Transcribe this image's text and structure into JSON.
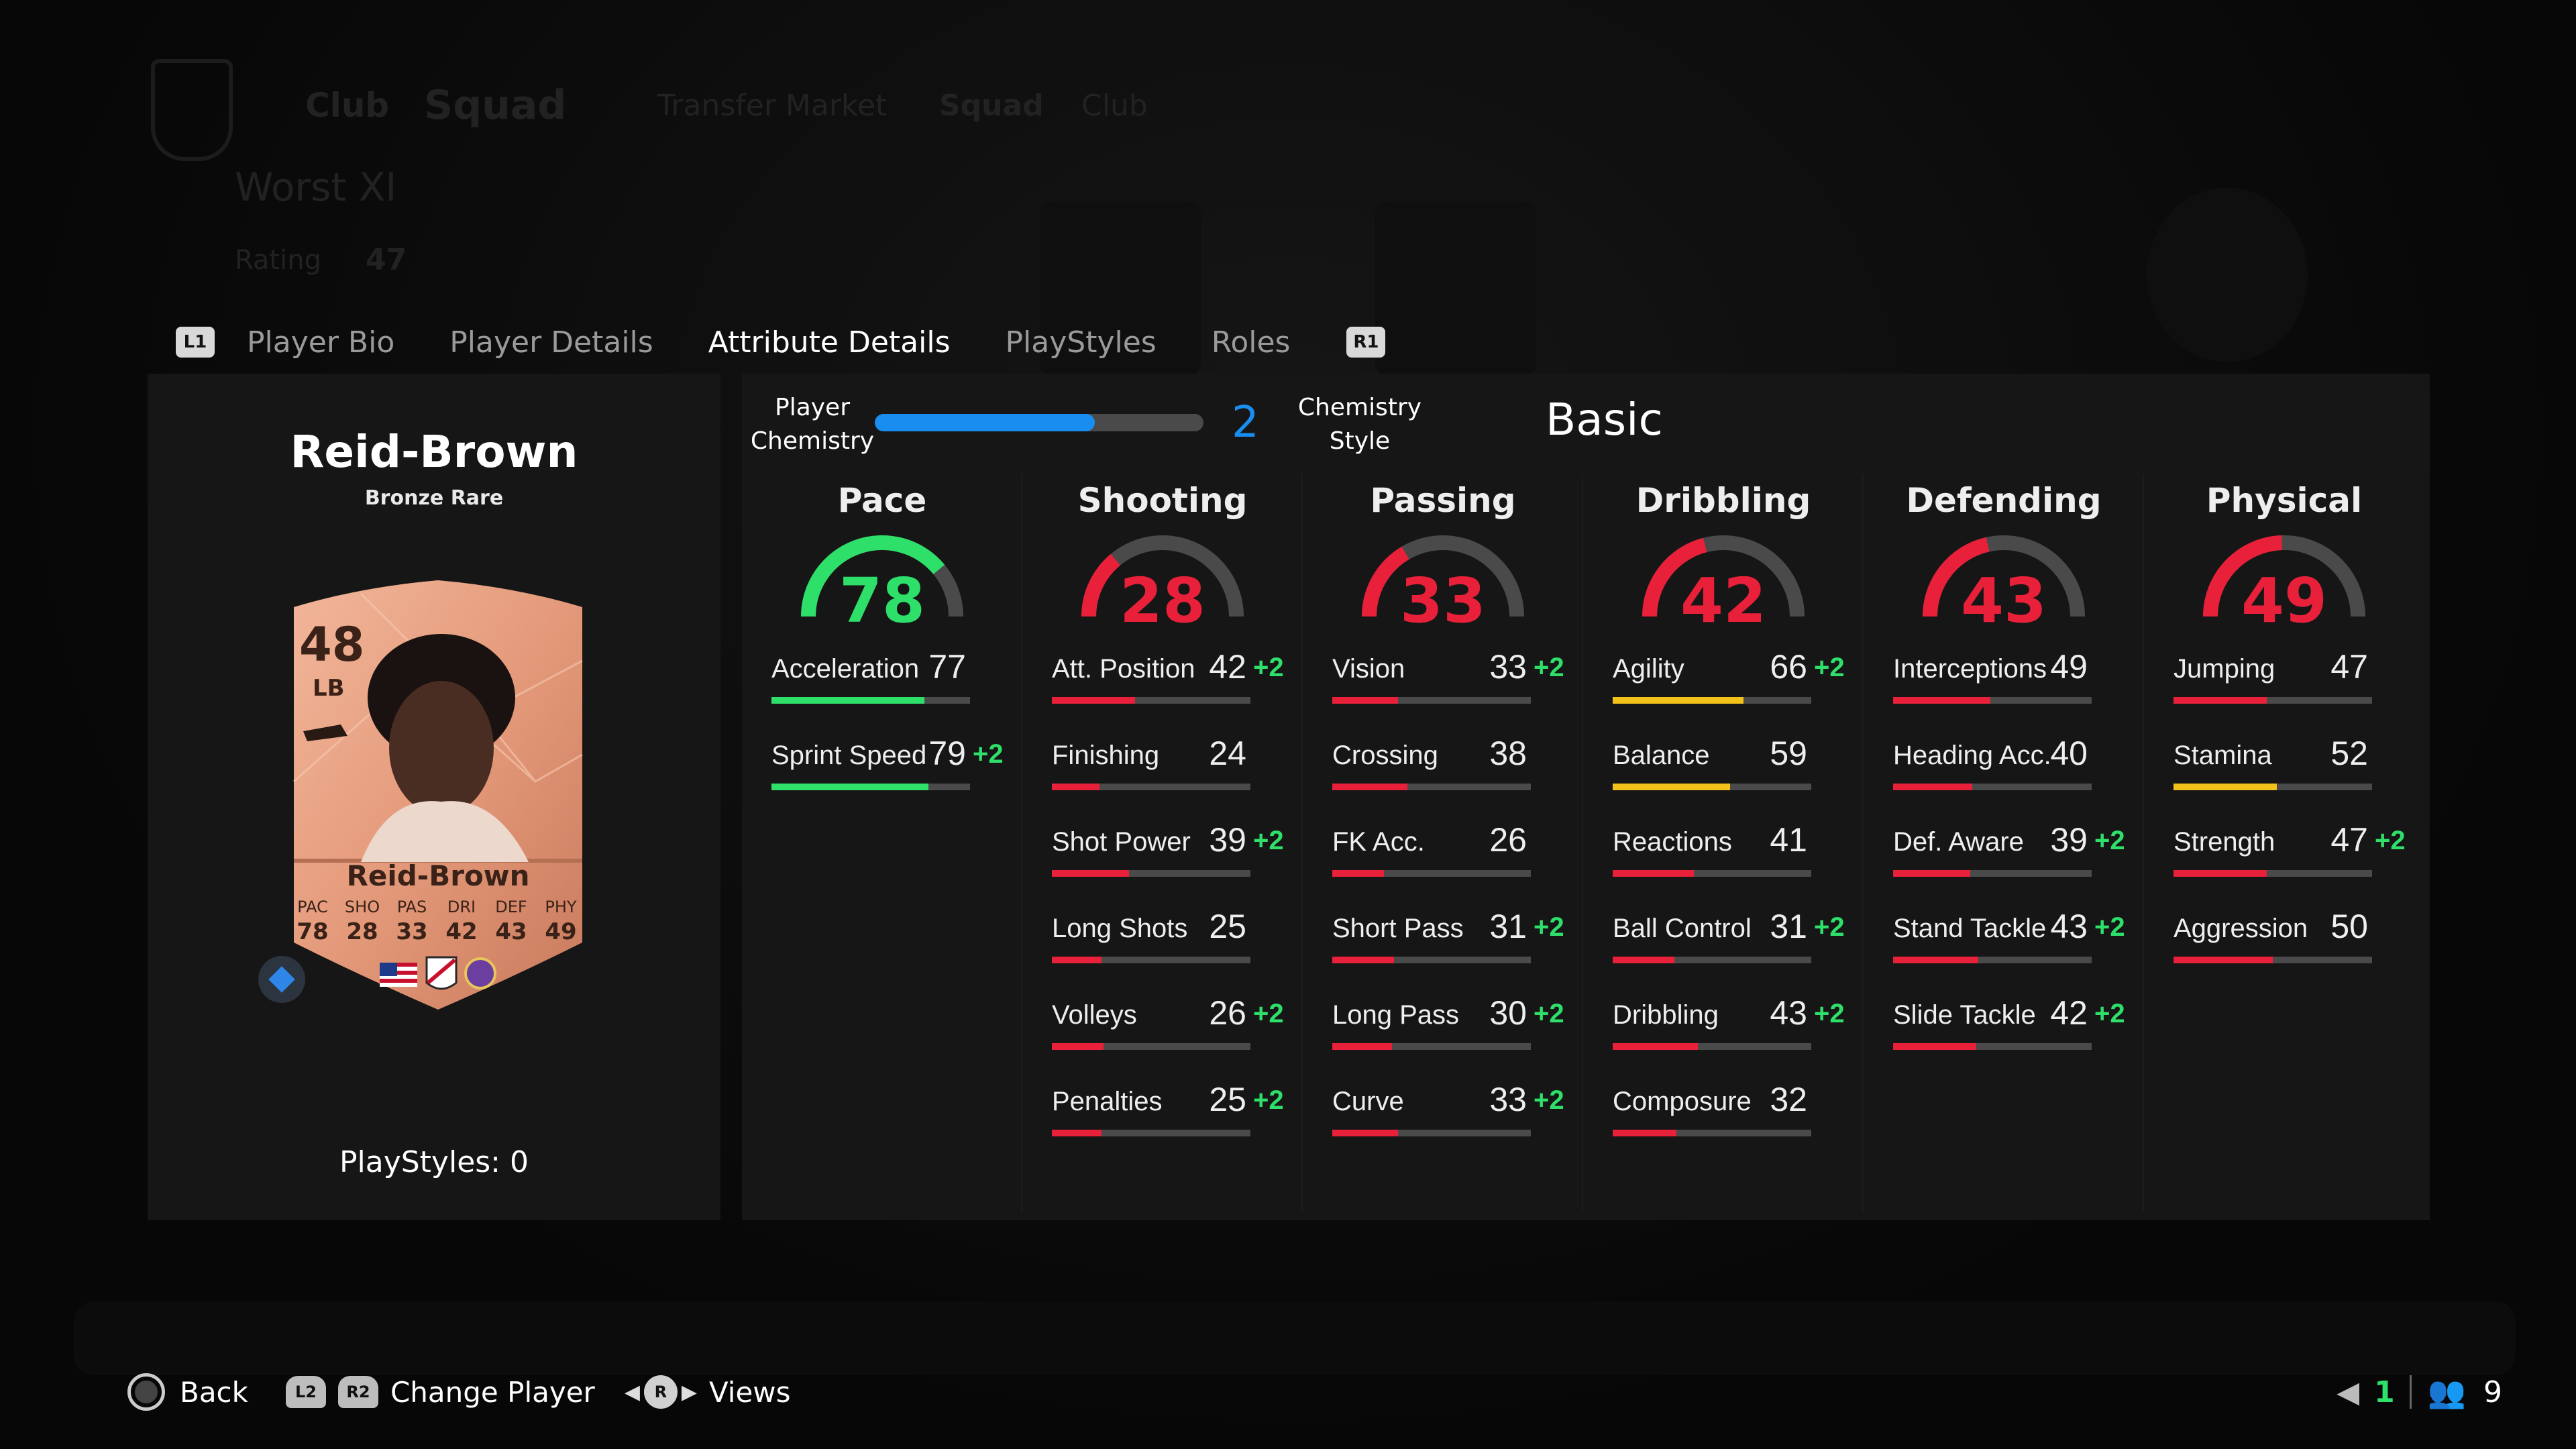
{
  "tabs": {
    "left_button": "L1",
    "right_button": "R1",
    "items": [
      {
        "label": "Player Bio",
        "active": false
      },
      {
        "label": "Player Details",
        "active": false
      },
      {
        "label": "Attribute Details",
        "active": true
      },
      {
        "label": "PlayStyles",
        "active": false
      },
      {
        "label": "Roles",
        "active": false
      }
    ]
  },
  "player": {
    "name": "Reid-Brown",
    "rarity": "Bronze Rare",
    "playstyles": "PlayStyles: 0",
    "card": {
      "rating": "48",
      "position": "LB",
      "name": "Reid-Brown",
      "stat_labels": [
        "PAC",
        "SHO",
        "PAS",
        "DRI",
        "DEF",
        "PHY"
      ],
      "stat_values": [
        "78",
        "28",
        "33",
        "42",
        "43",
        "49"
      ]
    }
  },
  "chemistry": {
    "player_chemistry_label": "Player Chemistry",
    "player_chemistry_value": "2",
    "player_chemistry_fraction": 0.67,
    "style_label": "Chemistry Style",
    "style_value": "Basic"
  },
  "colors": {
    "green": "#2ee06a",
    "red": "#e8203a",
    "yellow": "#f2c21b",
    "blue": "#1a8ef0",
    "track": "#4a4a4a"
  },
  "categories": [
    {
      "name": "Pace",
      "value": 78,
      "color": "green",
      "attributes": [
        {
          "name": "Acceleration",
          "value": 77,
          "bonus": "",
          "color": "green"
        },
        {
          "name": "Sprint Speed",
          "value": 79,
          "bonus": "+2",
          "color": "green"
        }
      ]
    },
    {
      "name": "Shooting",
      "value": 28,
      "color": "red",
      "attributes": [
        {
          "name": "Att. Position",
          "value": 42,
          "bonus": "+2",
          "color": "red"
        },
        {
          "name": "Finishing",
          "value": 24,
          "bonus": "",
          "color": "red"
        },
        {
          "name": "Shot Power",
          "value": 39,
          "bonus": "+2",
          "color": "red"
        },
        {
          "name": "Long Shots",
          "value": 25,
          "bonus": "",
          "color": "red"
        },
        {
          "name": "Volleys",
          "value": 26,
          "bonus": "+2",
          "color": "red"
        },
        {
          "name": "Penalties",
          "value": 25,
          "bonus": "+2",
          "color": "red"
        }
      ]
    },
    {
      "name": "Passing",
      "value": 33,
      "color": "red",
      "attributes": [
        {
          "name": "Vision",
          "value": 33,
          "bonus": "+2",
          "color": "red"
        },
        {
          "name": "Crossing",
          "value": 38,
          "bonus": "",
          "color": "red"
        },
        {
          "name": "FK Acc.",
          "value": 26,
          "bonus": "",
          "color": "red"
        },
        {
          "name": "Short Pass",
          "value": 31,
          "bonus": "+2",
          "color": "red"
        },
        {
          "name": "Long Pass",
          "value": 30,
          "bonus": "+2",
          "color": "red"
        },
        {
          "name": "Curve",
          "value": 33,
          "bonus": "+2",
          "color": "red"
        }
      ]
    },
    {
      "name": "Dribbling",
      "value": 42,
      "color": "red",
      "attributes": [
        {
          "name": "Agility",
          "value": 66,
          "bonus": "+2",
          "color": "yellow"
        },
        {
          "name": "Balance",
          "value": 59,
          "bonus": "",
          "color": "yellow"
        },
        {
          "name": "Reactions",
          "value": 41,
          "bonus": "",
          "color": "red"
        },
        {
          "name": "Ball Control",
          "value": 31,
          "bonus": "+2",
          "color": "red"
        },
        {
          "name": "Dribbling",
          "value": 43,
          "bonus": "+2",
          "color": "red"
        },
        {
          "name": "Composure",
          "value": 32,
          "bonus": "",
          "color": "red"
        }
      ]
    },
    {
      "name": "Defending",
      "value": 43,
      "color": "red",
      "attributes": [
        {
          "name": "Interceptions",
          "value": 49,
          "bonus": "",
          "color": "red"
        },
        {
          "name": "Heading Acc.",
          "value": 40,
          "bonus": "",
          "color": "red"
        },
        {
          "name": "Def. Aware",
          "value": 39,
          "bonus": "+2",
          "color": "red"
        },
        {
          "name": "Stand Tackle",
          "value": 43,
          "bonus": "+2",
          "color": "red"
        },
        {
          "name": "Slide Tackle",
          "value": 42,
          "bonus": "+2",
          "color": "red"
        }
      ]
    },
    {
      "name": "Physical",
      "value": 49,
      "color": "red",
      "attributes": [
        {
          "name": "Jumping",
          "value": 47,
          "bonus": "",
          "color": "red"
        },
        {
          "name": "Stamina",
          "value": 52,
          "bonus": "",
          "color": "yellow"
        },
        {
          "name": "Strength",
          "value": 47,
          "bonus": "+2",
          "color": "red"
        },
        {
          "name": "Aggression",
          "value": 50,
          "bonus": "",
          "color": "red"
        }
      ]
    }
  ],
  "footer": {
    "back_label": "Back",
    "l2": "L2",
    "r2": "R2",
    "change_player_label": "Change Player",
    "r_stick": "R",
    "views_label": "Views",
    "count_green": "1",
    "count_players": "9"
  },
  "background": {
    "squad_name": "Worst XI",
    "rating_label": "Rating",
    "rating_value": "47",
    "nav": [
      "Club",
      "Squad",
      "Transfer Market",
      "Squad",
      "Club"
    ]
  }
}
